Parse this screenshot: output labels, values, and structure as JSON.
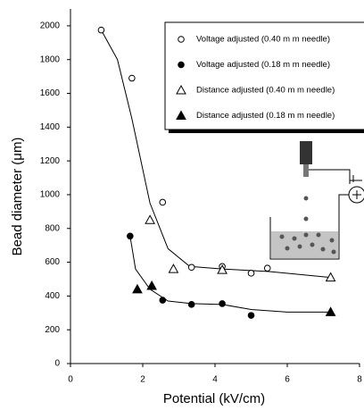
{
  "chart_data": {
    "type": "scatter",
    "x_label": "Potential (kV/cm)",
    "y_label": "Bead diameter (μm)",
    "xlim": [
      0,
      8
    ],
    "xticks": [
      0,
      2,
      4,
      6,
      8
    ],
    "ylim": [
      0,
      2100
    ],
    "yticks": [
      0,
      200,
      400,
      600,
      800,
      1000,
      1200,
      1400,
      1600,
      1800,
      2000
    ],
    "series": [
      {
        "name": "Voltage adjusted (0.40 m m needle)",
        "marker": "circle",
        "filled": false,
        "color": "#000000",
        "x": [
          0.85,
          1.7,
          2.55,
          3.35,
          4.2,
          5.0,
          5.45
        ],
        "values": [
          1975,
          1690,
          955,
          570,
          575,
          535,
          565
        ]
      },
      {
        "name": "Voltage adjusted (0.18 m m needle)",
        "marker": "circle",
        "filled": true,
        "color": "#000000",
        "x": [
          1.65,
          2.55,
          3.35,
          4.2,
          5.0
        ],
        "values": [
          755,
          375,
          350,
          355,
          285
        ]
      },
      {
        "name": "Distance adjusted (0.40 m m needle)",
        "marker": "triangle",
        "filled": false,
        "color": "#000000",
        "x": [
          2.2,
          2.85,
          4.2,
          7.2
        ],
        "values": [
          850,
          560,
          555,
          510
        ]
      },
      {
        "name": "Distance adjusted (0.18 m m needle)",
        "marker": "triangle",
        "filled": true,
        "color": "#000000",
        "x": [
          1.85,
          2.25,
          7.2
        ],
        "values": [
          440,
          460,
          305
        ]
      }
    ],
    "fit_curves": [
      {
        "x": [
          0.85,
          1.3,
          1.7,
          2.2,
          2.7,
          3.3,
          4.2,
          5.5,
          7.2
        ],
        "values": [
          1975,
          1800,
          1450,
          950,
          680,
          575,
          560,
          545,
          510
        ]
      },
      {
        "x": [
          1.65,
          1.8,
          2.2,
          2.7,
          3.35,
          4.2,
          5.0,
          6.0,
          7.2
        ],
        "values": [
          755,
          560,
          440,
          370,
          355,
          350,
          320,
          305,
          305
        ]
      }
    ]
  }
}
